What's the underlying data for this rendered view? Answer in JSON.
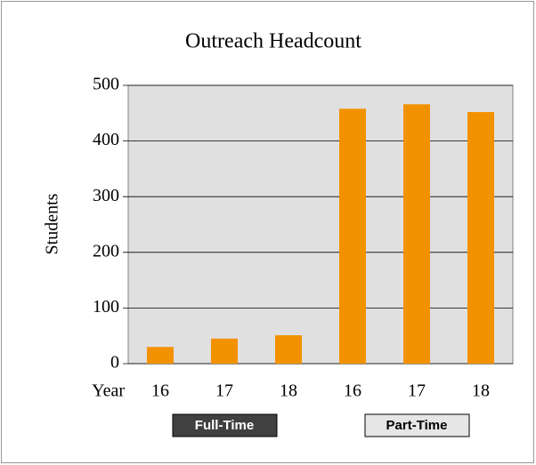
{
  "chart_data": {
    "type": "bar",
    "title": "Outreach Headcount",
    "y_label": "Students",
    "x_label": "Year",
    "categories": [
      "16",
      "17",
      "18",
      "16",
      "17",
      "18"
    ],
    "groups": [
      "Full-Time",
      "Part-Time"
    ],
    "values": [
      30,
      45,
      51,
      458,
      466,
      452
    ],
    "color": "#f39200",
    "ylim": [
      0,
      500
    ],
    "yticks": [
      0,
      100,
      200,
      300,
      400,
      500
    ],
    "grid": true
  }
}
